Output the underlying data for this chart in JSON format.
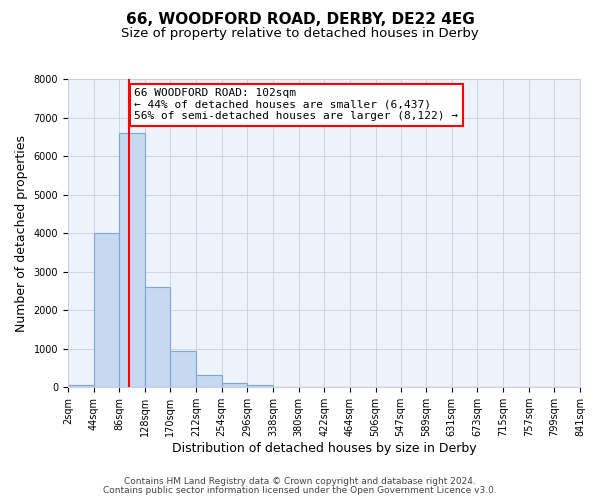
{
  "title": "66, WOODFORD ROAD, DERBY, DE22 4EG",
  "subtitle": "Size of property relative to detached houses in Derby",
  "xlabel": "Distribution of detached houses by size in Derby",
  "ylabel": "Number of detached properties",
  "bin_edges": [
    2,
    44,
    86,
    128,
    170,
    212,
    254,
    296,
    338,
    380,
    422,
    464,
    506,
    547,
    589,
    631,
    673,
    715,
    757,
    799,
    841
  ],
  "bar_heights": [
    60,
    4000,
    6600,
    2600,
    950,
    320,
    120,
    50,
    0,
    0,
    0,
    0,
    0,
    0,
    0,
    0,
    0,
    0,
    0,
    0
  ],
  "bar_color": "#c6d9f0",
  "bar_edge_color": "#7aa8d4",
  "reference_line_x": 102,
  "reference_line_color": "red",
  "ylim": [
    0,
    8000
  ],
  "yticks": [
    0,
    1000,
    2000,
    3000,
    4000,
    5000,
    6000,
    7000,
    8000
  ],
  "tick_labels": [
    "2sqm",
    "44sqm",
    "86sqm",
    "128sqm",
    "170sqm",
    "212sqm",
    "254sqm",
    "296sqm",
    "338sqm",
    "380sqm",
    "422sqm",
    "464sqm",
    "506sqm",
    "547sqm",
    "589sqm",
    "631sqm",
    "673sqm",
    "715sqm",
    "757sqm",
    "799sqm",
    "841sqm"
  ],
  "annotation_line1": "66 WOODFORD ROAD: 102sqm",
  "annotation_line2": "← 44% of detached houses are smaller (6,437)",
  "annotation_line3": "56% of semi-detached houses are larger (8,122) →",
  "footer_line1": "Contains HM Land Registry data © Crown copyright and database right 2024.",
  "footer_line2": "Contains public sector information licensed under the Open Government Licence v3.0.",
  "bg_color": "#eef2fb",
  "grid_color": "#c8d0e0",
  "title_fontsize": 11,
  "subtitle_fontsize": 9.5,
  "axis_label_fontsize": 9,
  "tick_fontsize": 7,
  "annotation_fontsize": 8,
  "footer_fontsize": 6.5
}
